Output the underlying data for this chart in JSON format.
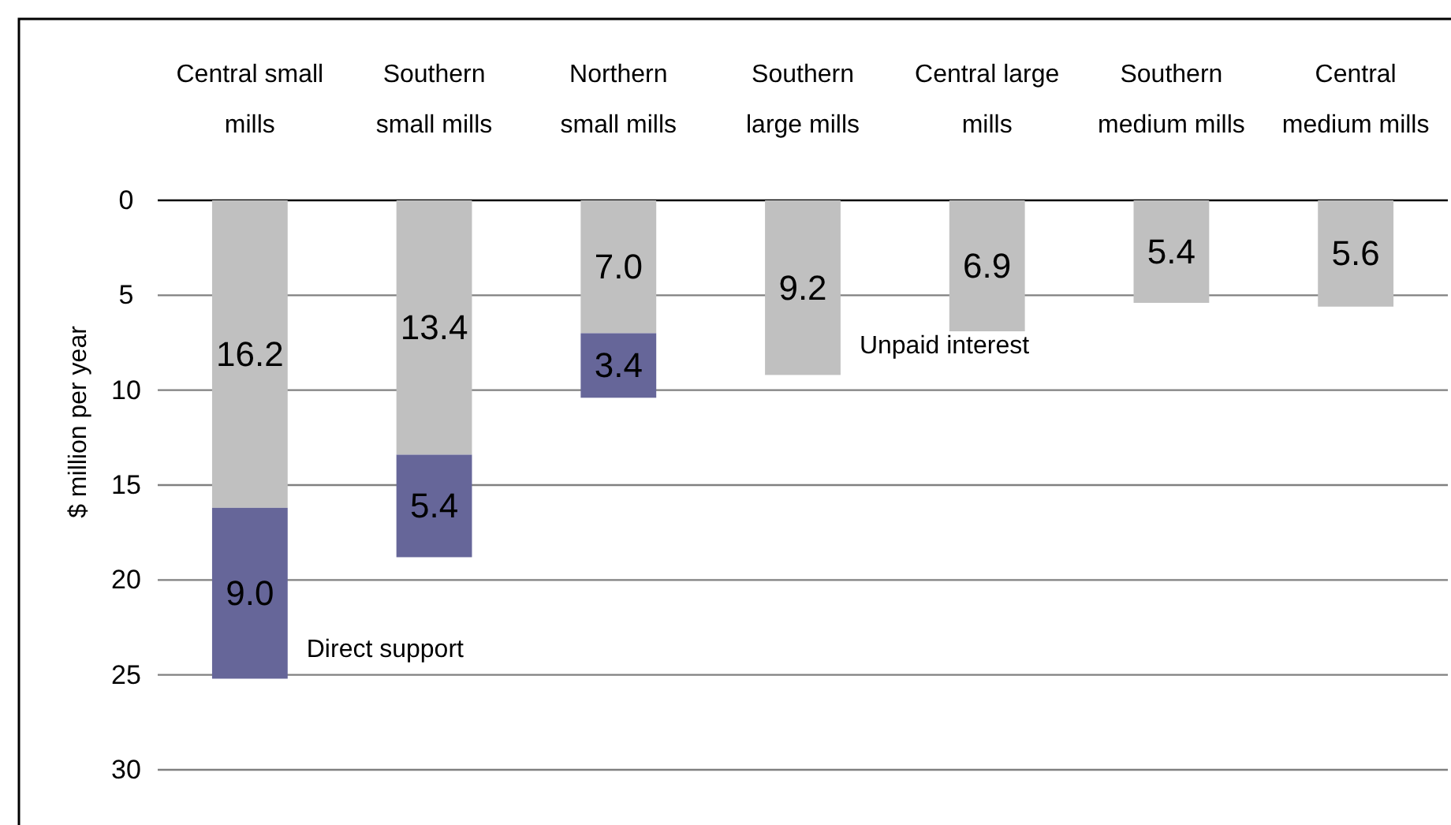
{
  "chart_data": {
    "type": "bar",
    "stacked": true,
    "ylabel": "$ million per year",
    "categories": [
      "Central small mills",
      "Southern small mills",
      "Northern small mills",
      "Southern large mills",
      "Central large mills",
      "Southern medium mills",
      "Central medium mills"
    ],
    "series": [
      {
        "name": "Unpaid interest",
        "color": "#c0c0c0",
        "values": [
          16.2,
          13.4,
          7.0,
          9.2,
          6.9,
          5.4,
          5.6
        ],
        "value_labels": [
          "16.2",
          "13.4",
          "7.0",
          "9.2",
          "6.9",
          "5.4",
          "5.6"
        ]
      },
      {
        "name": "Direct support",
        "color": "#666699",
        "values": [
          9.0,
          5.4,
          3.4,
          null,
          null,
          null,
          null
        ],
        "value_labels": [
          "9.0",
          "5.4",
          "3.4",
          null,
          null,
          null,
          null
        ]
      }
    ],
    "ylim": [
      30,
      0
    ],
    "yticks": [
      0,
      5,
      10,
      15,
      20,
      25,
      30
    ],
    "grid": "y"
  }
}
